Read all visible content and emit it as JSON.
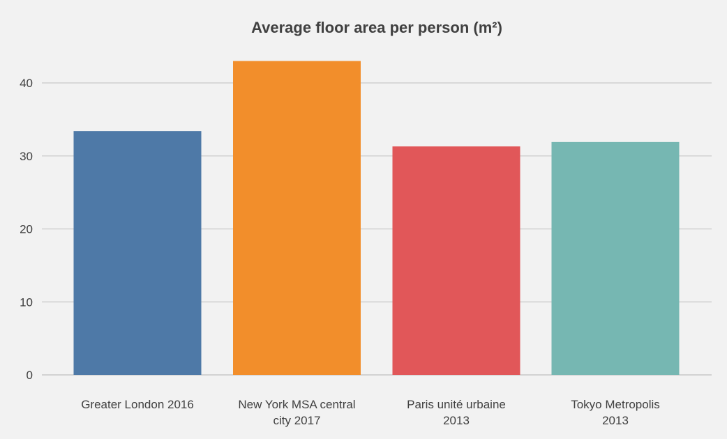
{
  "chart_data": {
    "type": "bar",
    "title": "Average floor area per person (m²)",
    "xlabel": "",
    "ylabel": "",
    "categories": [
      [
        "Greater London 2016"
      ],
      [
        "New York MSA central",
        "city 2017"
      ],
      [
        "Paris unité urbaine",
        "2013"
      ],
      [
        "Tokyo Metropolis",
        "2013"
      ]
    ],
    "values": [
      33.4,
      43.0,
      31.3,
      31.9
    ],
    "colors": [
      "#4e79a7",
      "#f28e2b",
      "#e15759",
      "#76b7b2"
    ],
    "ylim": [
      0,
      45
    ],
    "yticks": [
      0,
      10,
      20,
      30,
      40
    ],
    "grid": true,
    "legend": "none"
  }
}
